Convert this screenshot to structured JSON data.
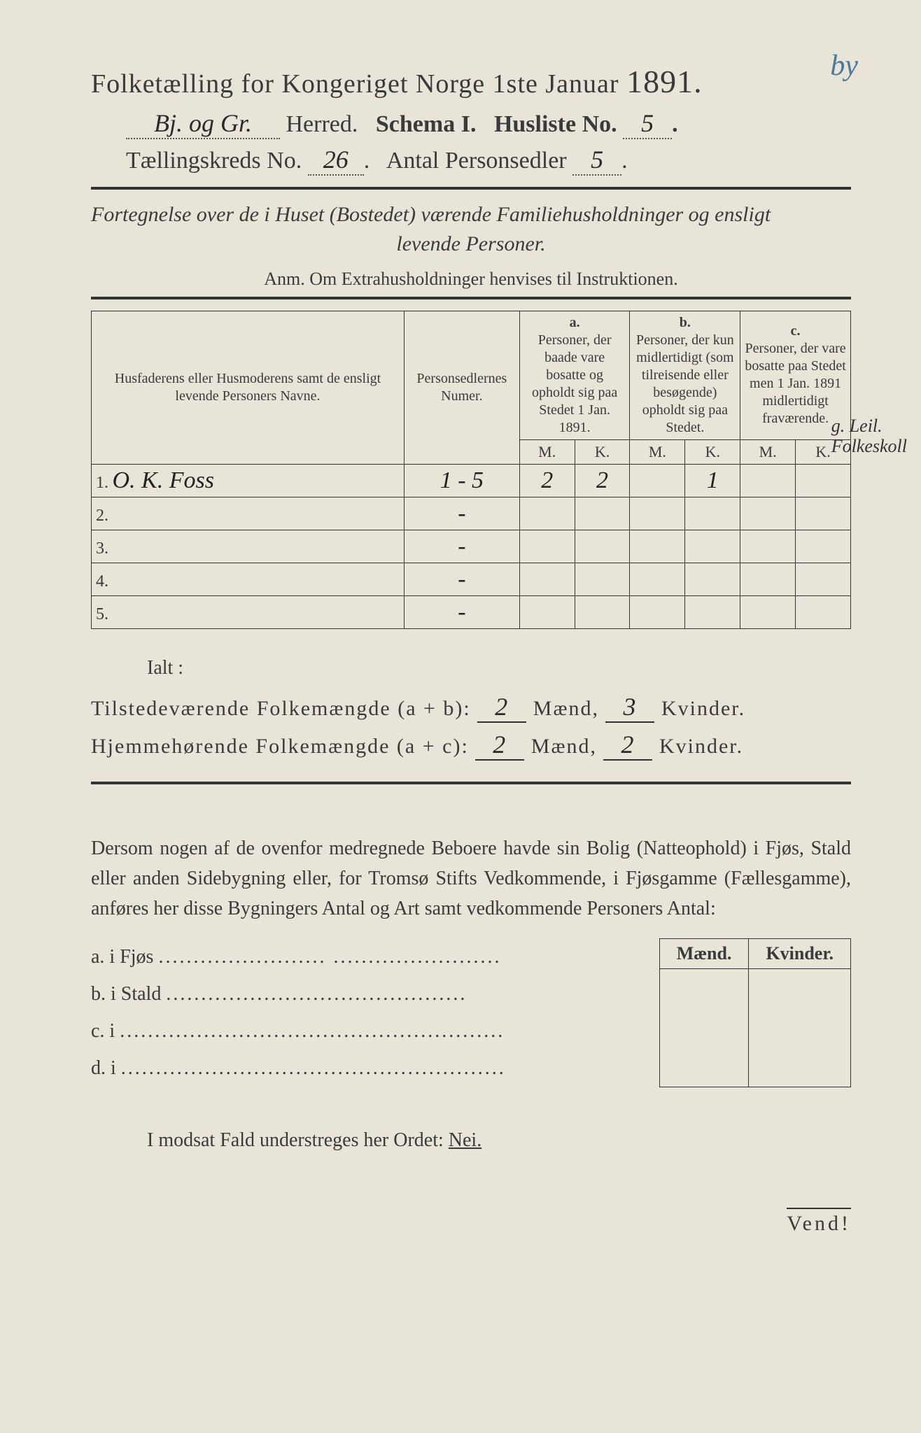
{
  "corner_mark": "by",
  "title": {
    "prefix": "Folketælling for Kongeriget Norge 1ste Januar",
    "year": "1891.",
    "herred_value": "Bj. og Gr.",
    "herred_label": "Herred.",
    "schema_label": "Schema I.",
    "husliste_label": "Husliste No.",
    "husliste_value": "5",
    "kreds_label": "Tællingskreds No.",
    "kreds_value": "26",
    "antal_label": "Antal Personsedler",
    "antal_value": "5"
  },
  "subtitle": {
    "line1": "Fortegnelse over de i Huset (Bostedet) værende Familiehusholdninger og ensligt",
    "line2": "levende Personer."
  },
  "anm": "Anm.  Om Extrahusholdninger henvises til Instruktionen.",
  "table": {
    "headers": {
      "name": "Husfaderens eller Husmoderens samt de ensligt levende Personers Navne.",
      "num": "Personsedlernes Numer.",
      "a_label": "a.",
      "a_text": "Personer, der baade vare bosatte og opholdt sig paa Stedet 1 Jan. 1891.",
      "b_label": "b.",
      "b_text": "Personer, der kun midlertidigt (som tilreisende eller besøgende) opholdt sig paa Stedet.",
      "c_label": "c.",
      "c_text": "Personer, der vare bosatte paa Stedet men 1 Jan. 1891 midlertidigt fraværende.",
      "m": "M.",
      "k": "K."
    },
    "rows": [
      {
        "n": "1.",
        "name": "O. K. Foss",
        "num": "1 - 5",
        "am": "2",
        "ak": "2",
        "bm": "",
        "bk": "1",
        "cm": "",
        "ck": ""
      },
      {
        "n": "2.",
        "name": "",
        "num": "-",
        "am": "",
        "ak": "",
        "bm": "",
        "bk": "",
        "cm": "",
        "ck": ""
      },
      {
        "n": "3.",
        "name": "",
        "num": "-",
        "am": "",
        "ak": "",
        "bm": "",
        "bk": "",
        "cm": "",
        "ck": ""
      },
      {
        "n": "4.",
        "name": "",
        "num": "-",
        "am": "",
        "ak": "",
        "bm": "",
        "bk": "",
        "cm": "",
        "ck": ""
      },
      {
        "n": "5.",
        "name": "",
        "num": "-",
        "am": "",
        "ak": "",
        "bm": "",
        "bk": "",
        "cm": "",
        "ck": ""
      }
    ],
    "side_note_line1": "g. Leil.",
    "side_note_line2": "Folkeskoll"
  },
  "totals": {
    "ialt": "Ialt :",
    "line1_label": "Tilstedeværende Folkemængde (a + b):",
    "line1_m": "2",
    "line1_k": "3",
    "line2_label": "Hjemmehørende Folkemængde (a + c):",
    "line2_m": "2",
    "line2_k": "2",
    "maend": "Mænd,",
    "kvinder": "Kvinder."
  },
  "paragraph": "Dersom nogen af de ovenfor medregnede Beboere havde sin Bolig (Natteophold) i Fjøs, Stald eller anden Sidebygning eller, for Tromsø Stifts Vedkommende, i Fjøsgamme (Fællesgamme), anføres her disse Bygningers Antal og Art samt vedkommende Personers Antal:",
  "byg": {
    "head_m": "Mænd.",
    "head_k": "Kvinder.",
    "rows": [
      {
        "label": "a.  i     Fjøs",
        "dots": "........................  ........................"
      },
      {
        "label": "b.  i     Stald",
        "dots": "..........................................."
      },
      {
        "label": "c.  i",
        "dots": "......................................................."
      },
      {
        "label": "d.  i",
        "dots": "......................................................."
      }
    ]
  },
  "nei_line": "I modsat Fald understreges her Ordet: ",
  "nei_word": "Nei.",
  "vend": "Vend!"
}
